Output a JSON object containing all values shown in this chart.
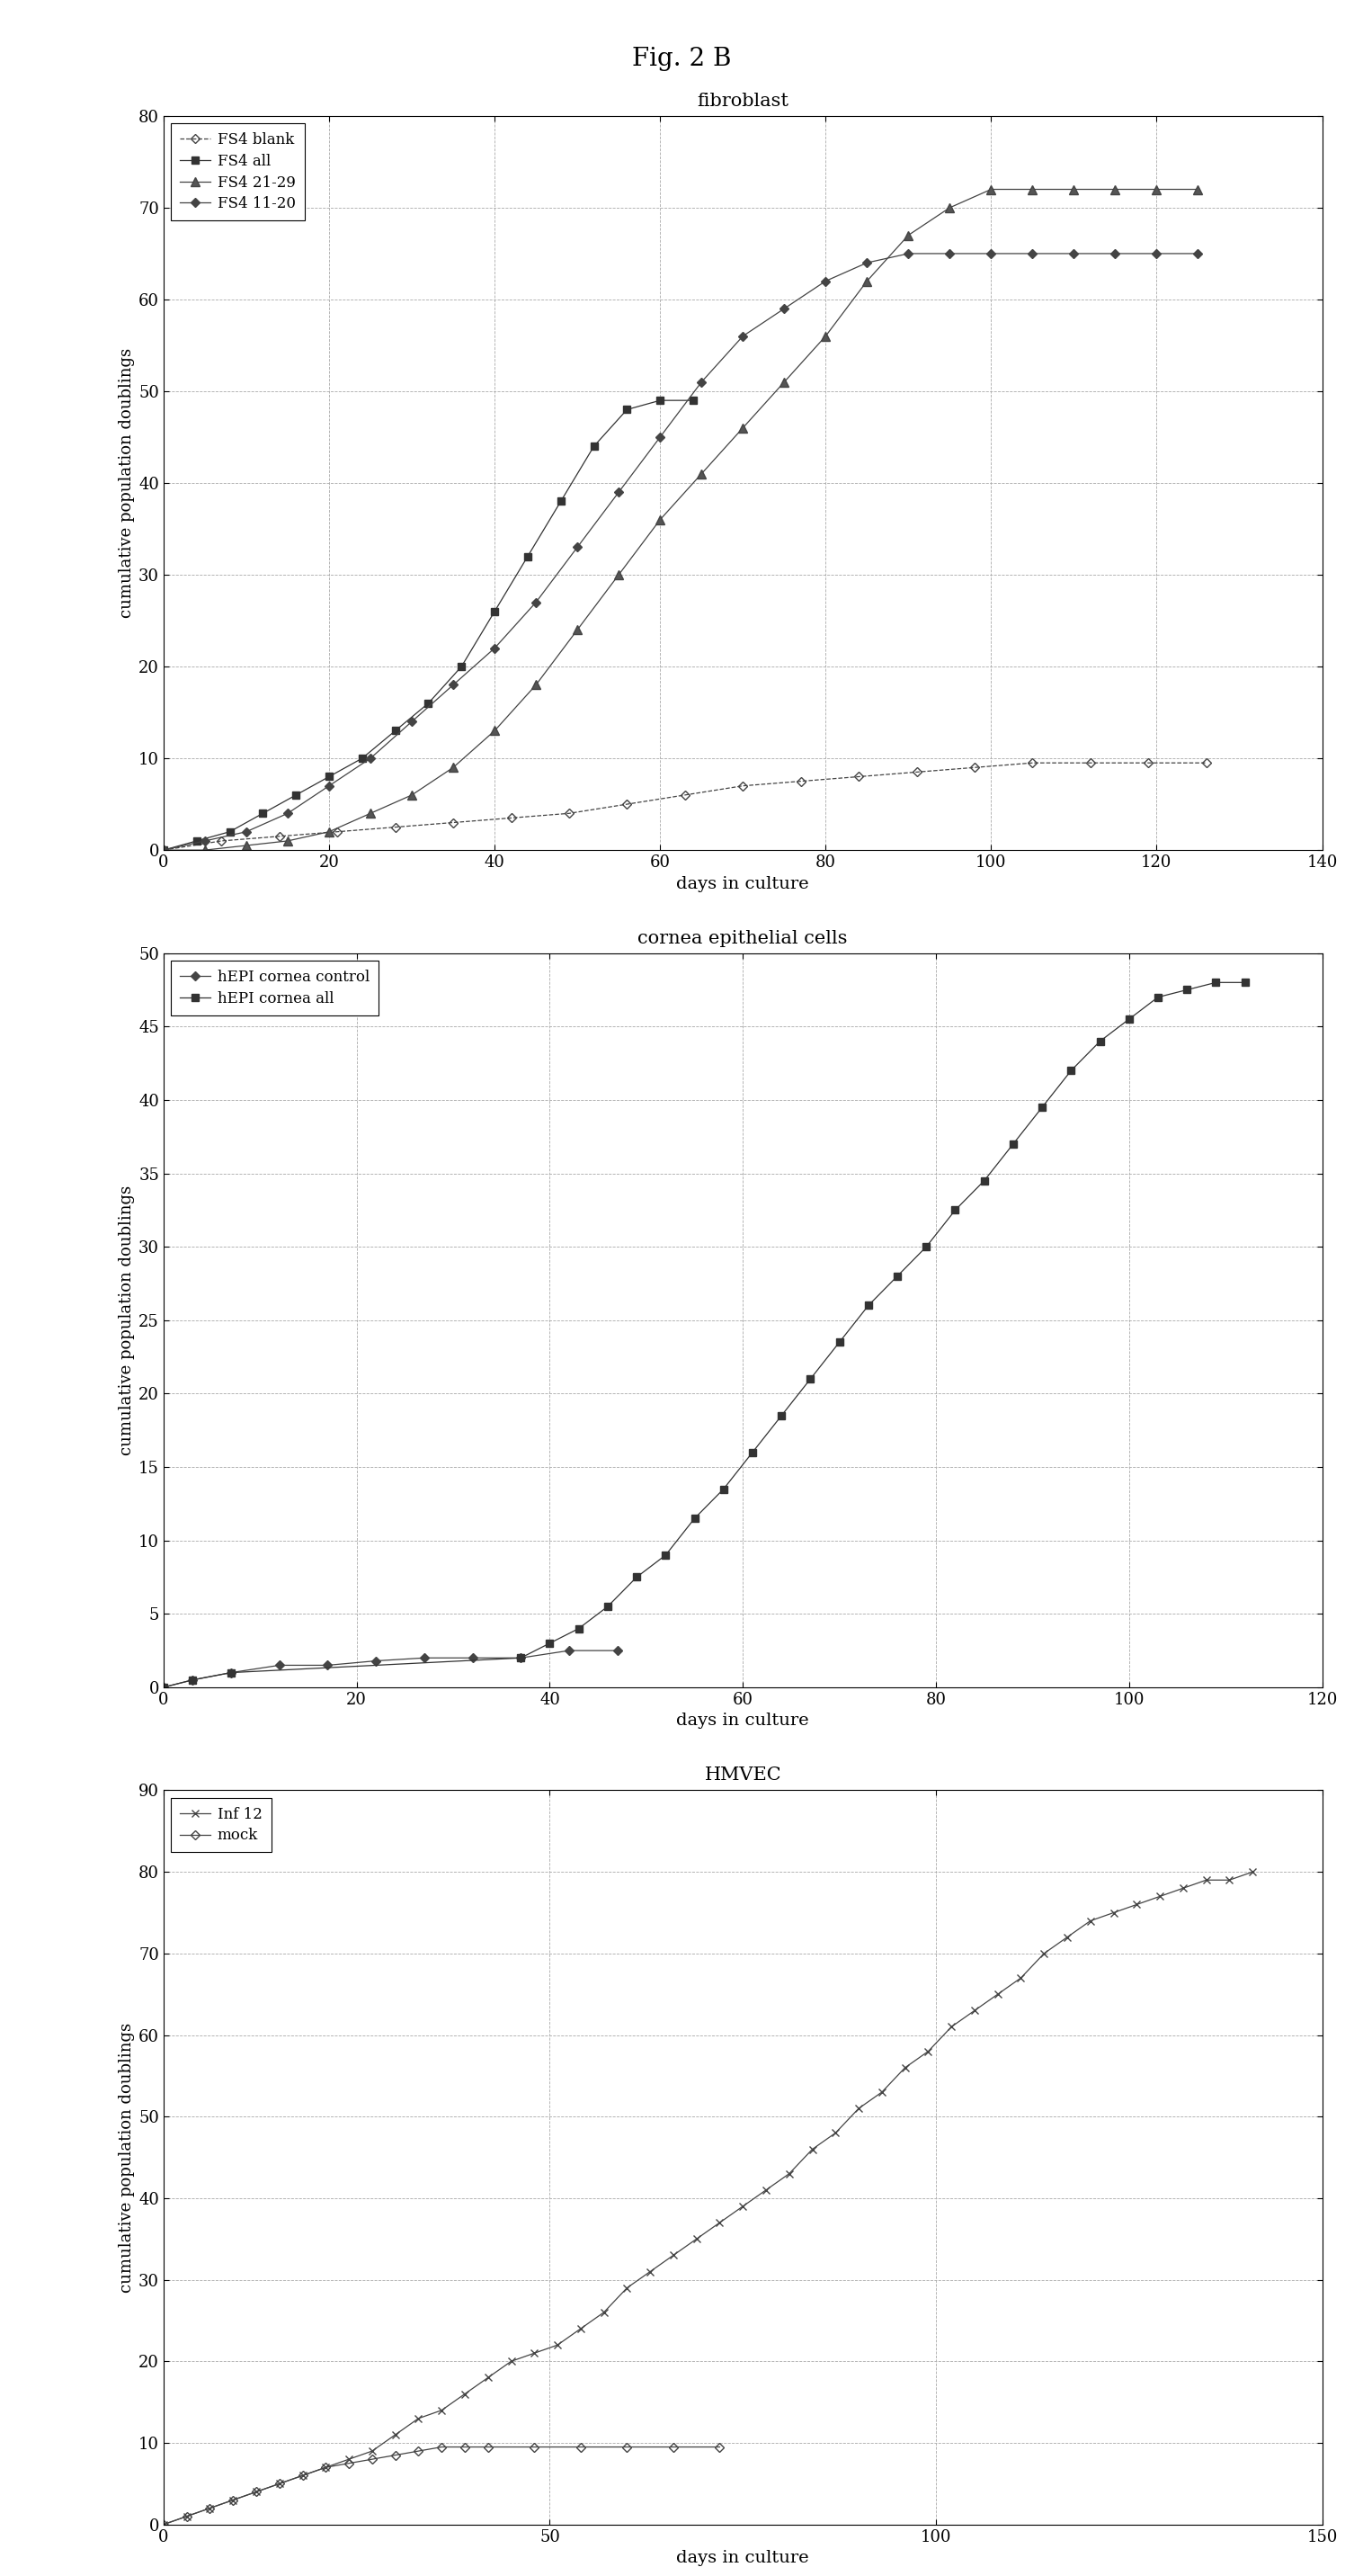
{
  "fig_title": "Fig. 2 B",
  "charts": [
    {
      "title": "fibroblast",
      "xlabel": "days in culture",
      "ylabel": "cumulative population doublings",
      "xlim": [
        0,
        140
      ],
      "ylim": [
        0,
        80
      ],
      "xticks": [
        0,
        20,
        40,
        60,
        80,
        100,
        120,
        140
      ],
      "yticks": [
        0,
        10,
        20,
        30,
        40,
        50,
        60,
        70,
        80
      ],
      "series": [
        {
          "label": "FS4 blank",
          "color": "#444444",
          "marker": "D",
          "markersize": 5,
          "linestyle": "--",
          "mfc": "none",
          "x": [
            0,
            7,
            14,
            21,
            28,
            35,
            42,
            49,
            56,
            63,
            70,
            77,
            84,
            91,
            98,
            105,
            112,
            119,
            126
          ],
          "y": [
            0,
            1,
            1.5,
            2,
            2.5,
            3,
            3.5,
            4,
            5,
            6,
            7,
            7.5,
            8,
            8.5,
            9,
            9.5,
            9.5,
            9.5,
            9.5
          ]
        },
        {
          "label": "FS4 all",
          "color": "#333333",
          "marker": "s",
          "markersize": 6,
          "linestyle": "-",
          "mfc": "#333333",
          "x": [
            0,
            4,
            8,
            12,
            16,
            20,
            24,
            28,
            32,
            36,
            40,
            44,
            48,
            52,
            56,
            60,
            64
          ],
          "y": [
            0,
            1,
            2,
            4,
            6,
            8,
            10,
            13,
            16,
            20,
            26,
            32,
            38,
            44,
            48,
            49,
            49
          ]
        },
        {
          "label": "FS4 21-29",
          "color": "#444444",
          "marker": "^",
          "markersize": 7,
          "linestyle": "-",
          "mfc": "#555555",
          "x": [
            0,
            5,
            10,
            15,
            20,
            25,
            30,
            35,
            40,
            45,
            50,
            55,
            60,
            65,
            70,
            75,
            80,
            85,
            90,
            95,
            100,
            105,
            110,
            115,
            120,
            125
          ],
          "y": [
            0,
            0,
            0.5,
            1,
            2,
            4,
            6,
            9,
            13,
            18,
            24,
            30,
            36,
            41,
            46,
            51,
            56,
            62,
            67,
            70,
            72,
            72,
            72,
            72,
            72,
            72
          ]
        },
        {
          "label": "FS4 11-20",
          "color": "#444444",
          "marker": "D",
          "markersize": 5,
          "linestyle": "-",
          "mfc": "#444444",
          "x": [
            0,
            5,
            10,
            15,
            20,
            25,
            30,
            35,
            40,
            45,
            50,
            55,
            60,
            65,
            70,
            75,
            80,
            85,
            90,
            95,
            100,
            105,
            110,
            115,
            120,
            125
          ],
          "y": [
            0,
            1,
            2,
            4,
            7,
            10,
            14,
            18,
            22,
            27,
            33,
            39,
            45,
            51,
            56,
            59,
            62,
            64,
            65,
            65,
            65,
            65,
            65,
            65,
            65,
            65
          ]
        }
      ]
    },
    {
      "title": "cornea epithelial cells",
      "xlabel": "days in culture",
      "ylabel": "cumulative population doublings",
      "xlim": [
        0,
        120
      ],
      "ylim": [
        0,
        50
      ],
      "xticks": [
        0,
        20,
        40,
        60,
        80,
        100,
        120
      ],
      "yticks": [
        0,
        5,
        10,
        15,
        20,
        25,
        30,
        35,
        40,
        45,
        50
      ],
      "series": [
        {
          "label": "hEPI cornea control",
          "color": "#444444",
          "marker": "D",
          "markersize": 5,
          "linestyle": "-",
          "mfc": "#444444",
          "x": [
            0,
            3,
            7,
            12,
            17,
            22,
            27,
            32,
            37,
            42,
            47
          ],
          "y": [
            0,
            0.5,
            1,
            1.5,
            1.5,
            1.8,
            2,
            2,
            2,
            2.5,
            2.5
          ]
        },
        {
          "label": "hEPI cornea all",
          "color": "#333333",
          "marker": "s",
          "markersize": 6,
          "linestyle": "-",
          "mfc": "#333333",
          "x": [
            0,
            3,
            7,
            37,
            40,
            43,
            46,
            49,
            52,
            55,
            58,
            61,
            64,
            67,
            70,
            73,
            76,
            79,
            82,
            85,
            88,
            91,
            94,
            97,
            100,
            103,
            106,
            109,
            112
          ],
          "y": [
            0,
            0.5,
            1,
            2,
            3,
            4,
            5.5,
            7.5,
            9,
            11.5,
            13.5,
            16,
            18.5,
            21,
            23.5,
            26,
            28,
            30,
            32.5,
            34.5,
            37,
            39.5,
            42,
            44,
            45.5,
            47,
            47.5,
            48,
            48
          ]
        }
      ]
    },
    {
      "title": "HMVEC",
      "xlabel": "days in culture",
      "ylabel": "cumulative population doublings",
      "xlim": [
        0,
        150
      ],
      "ylim": [
        0,
        90
      ],
      "xticks": [
        0,
        50,
        100,
        150
      ],
      "yticks": [
        0,
        10,
        20,
        30,
        40,
        50,
        60,
        70,
        80,
        90
      ],
      "series": [
        {
          "label": "Inf 12",
          "color": "#444444",
          "marker": "x",
          "markersize": 6,
          "linestyle": "-",
          "mfc": "#444444",
          "x": [
            0,
            3,
            6,
            9,
            12,
            15,
            18,
            21,
            24,
            27,
            30,
            33,
            36,
            39,
            42,
            45,
            48,
            51,
            54,
            57,
            60,
            63,
            66,
            69,
            72,
            75,
            78,
            81,
            84,
            87,
            90,
            93,
            96,
            99,
            102,
            105,
            108,
            111,
            114,
            117,
            120,
            123,
            126,
            129,
            132,
            135,
            138,
            141
          ],
          "y": [
            0,
            1,
            2,
            3,
            4,
            5,
            6,
            7,
            8,
            9,
            11,
            13,
            14,
            16,
            18,
            20,
            21,
            22,
            24,
            26,
            29,
            31,
            33,
            35,
            37,
            39,
            41,
            43,
            46,
            48,
            51,
            53,
            56,
            58,
            61,
            63,
            65,
            67,
            70,
            72,
            74,
            75,
            76,
            77,
            78,
            79,
            79,
            80
          ]
        },
        {
          "label": "mock",
          "color": "#444444",
          "marker": "D",
          "markersize": 5,
          "linestyle": "-",
          "mfc": "none",
          "x": [
            0,
            3,
            6,
            9,
            12,
            15,
            18,
            21,
            24,
            27,
            30,
            33,
            36,
            39,
            42,
            48,
            54,
            60,
            66,
            72
          ],
          "y": [
            0,
            1,
            2,
            3,
            4,
            5,
            6,
            7,
            7.5,
            8,
            8.5,
            9,
            9.5,
            9.5,
            9.5,
            9.5,
            9.5,
            9.5,
            9.5,
            9.5
          ]
        }
      ]
    }
  ]
}
